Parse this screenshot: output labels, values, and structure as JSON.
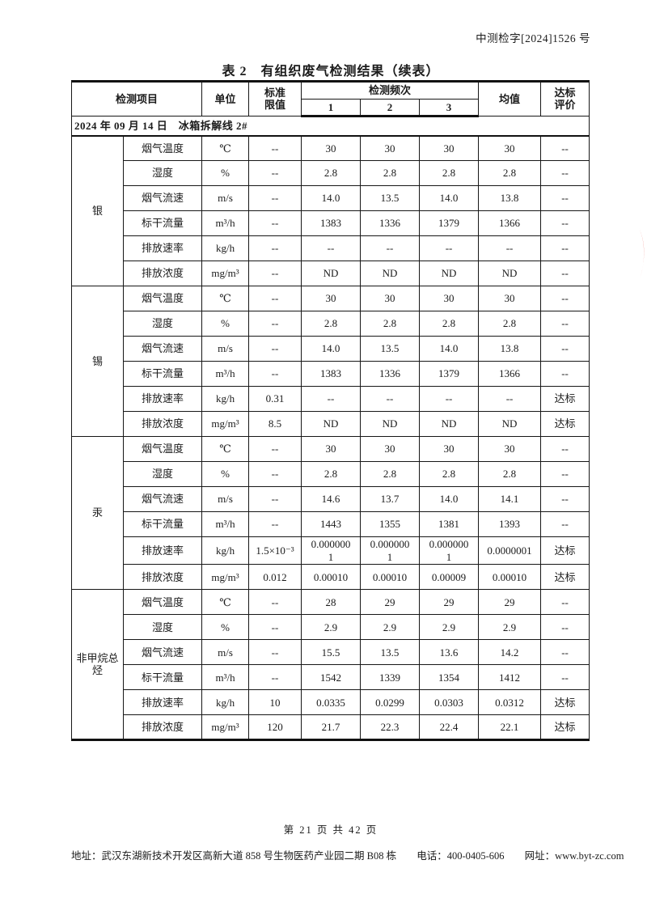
{
  "page": {
    "doc_number": "中测检字[2024]1526 号",
    "title": "表 2　有组织废气检测结果（续表）"
  },
  "table": {
    "headers": {
      "item": "检测项目",
      "unit": "单位",
      "limit_line1": "标准",
      "limit_line2": "限值",
      "frequency": "检测频次",
      "freq_1": "1",
      "freq_2": "2",
      "freq_3": "3",
      "mean": "均值",
      "verdict_line1": "达标",
      "verdict_line2": "评价"
    },
    "date_row": "2024 年 09 月 14 日　冰箱拆解线 2#",
    "groups": [
      {
        "name": "银",
        "rows": [
          {
            "param": "烟气温度",
            "unit": "℃",
            "limit": "--",
            "v1": "30",
            "v2": "30",
            "v3": "30",
            "mean": "30",
            "verdict": "--"
          },
          {
            "param": "湿度",
            "unit": "%",
            "limit": "--",
            "v1": "2.8",
            "v2": "2.8",
            "v3": "2.8",
            "mean": "2.8",
            "verdict": "--"
          },
          {
            "param": "烟气流速",
            "unit": "m/s",
            "limit": "--",
            "v1": "14.0",
            "v2": "13.5",
            "v3": "14.0",
            "mean": "13.8",
            "verdict": "--"
          },
          {
            "param": "标干流量",
            "unit": "m³/h",
            "limit": "--",
            "v1": "1383",
            "v2": "1336",
            "v3": "1379",
            "mean": "1366",
            "verdict": "--"
          },
          {
            "param": "排放速率",
            "unit": "kg/h",
            "limit": "--",
            "v1": "--",
            "v2": "--",
            "v3": "--",
            "mean": "--",
            "verdict": "--"
          },
          {
            "param": "排放浓度",
            "unit": "mg/m³",
            "limit": "--",
            "v1": "ND",
            "v2": "ND",
            "v3": "ND",
            "mean": "ND",
            "verdict": "--"
          }
        ]
      },
      {
        "name": "锡",
        "rows": [
          {
            "param": "烟气温度",
            "unit": "℃",
            "limit": "--",
            "v1": "30",
            "v2": "30",
            "v3": "30",
            "mean": "30",
            "verdict": "--"
          },
          {
            "param": "湿度",
            "unit": "%",
            "limit": "--",
            "v1": "2.8",
            "v2": "2.8",
            "v3": "2.8",
            "mean": "2.8",
            "verdict": "--"
          },
          {
            "param": "烟气流速",
            "unit": "m/s",
            "limit": "--",
            "v1": "14.0",
            "v2": "13.5",
            "v3": "14.0",
            "mean": "13.8",
            "verdict": "--"
          },
          {
            "param": "标干流量",
            "unit": "m³/h",
            "limit": "--",
            "v1": "1383",
            "v2": "1336",
            "v3": "1379",
            "mean": "1366",
            "verdict": "--"
          },
          {
            "param": "排放速率",
            "unit": "kg/h",
            "limit": "0.31",
            "v1": "--",
            "v2": "--",
            "v3": "--",
            "mean": "--",
            "verdict": "达标"
          },
          {
            "param": "排放浓度",
            "unit": "mg/m³",
            "limit": "8.5",
            "v1": "ND",
            "v2": "ND",
            "v3": "ND",
            "mean": "ND",
            "verdict": "达标"
          }
        ]
      },
      {
        "name": "汞",
        "rows": [
          {
            "param": "烟气温度",
            "unit": "℃",
            "limit": "--",
            "v1": "30",
            "v2": "30",
            "v3": "30",
            "mean": "30",
            "verdict": "--"
          },
          {
            "param": "湿度",
            "unit": "%",
            "limit": "--",
            "v1": "2.8",
            "v2": "2.8",
            "v3": "2.8",
            "mean": "2.8",
            "verdict": "--"
          },
          {
            "param": "烟气流速",
            "unit": "m/s",
            "limit": "--",
            "v1": "14.6",
            "v2": "13.7",
            "v3": "14.0",
            "mean": "14.1",
            "verdict": "--"
          },
          {
            "param": "标干流量",
            "unit": "m³/h",
            "limit": "--",
            "v1": "1443",
            "v2": "1355",
            "v3": "1381",
            "mean": "1393",
            "verdict": "--"
          },
          {
            "param": "排放速率",
            "unit": "kg/h",
            "limit": "1.5×10⁻³",
            "v1": "0.0000001",
            "v2": "0.0000001",
            "v3": "0.0000001",
            "mean": "0.0000001",
            "verdict": "达标"
          },
          {
            "param": "排放浓度",
            "unit": "mg/m³",
            "limit": "0.012",
            "v1": "0.00010",
            "v2": "0.00010",
            "v3": "0.00009",
            "mean": "0.00010",
            "verdict": "达标"
          }
        ]
      },
      {
        "name": "非甲烷总烃",
        "rows": [
          {
            "param": "烟气温度",
            "unit": "℃",
            "limit": "--",
            "v1": "28",
            "v2": "29",
            "v3": "29",
            "mean": "29",
            "verdict": "--"
          },
          {
            "param": "湿度",
            "unit": "%",
            "limit": "--",
            "v1": "2.9",
            "v2": "2.9",
            "v3": "2.9",
            "mean": "2.9",
            "verdict": "--"
          },
          {
            "param": "烟气流速",
            "unit": "m/s",
            "limit": "--",
            "v1": "15.5",
            "v2": "13.5",
            "v3": "13.6",
            "mean": "14.2",
            "verdict": "--"
          },
          {
            "param": "标干流量",
            "unit": "m³/h",
            "limit": "--",
            "v1": "1542",
            "v2": "1339",
            "v3": "1354",
            "mean": "1412",
            "verdict": "--"
          },
          {
            "param": "排放速率",
            "unit": "kg/h",
            "limit": "10",
            "v1": "0.0335",
            "v2": "0.0299",
            "v3": "0.0303",
            "mean": "0.0312",
            "verdict": "达标"
          },
          {
            "param": "排放浓度",
            "unit": "mg/m³",
            "limit": "120",
            "v1": "21.7",
            "v2": "22.3",
            "v3": "22.4",
            "mean": "22.1",
            "verdict": "达标"
          }
        ]
      }
    ]
  },
  "footer": {
    "page_info": "第 21 页 共 42 页",
    "address": "地址：武汉东湖新技术开发区高新大道 858 号生物医药产业园二期 B08 栋",
    "phone": "电话：400-0405-606",
    "website": "网址：www.byt-zc.com"
  },
  "stamp": {
    "color": "#e23b30"
  }
}
